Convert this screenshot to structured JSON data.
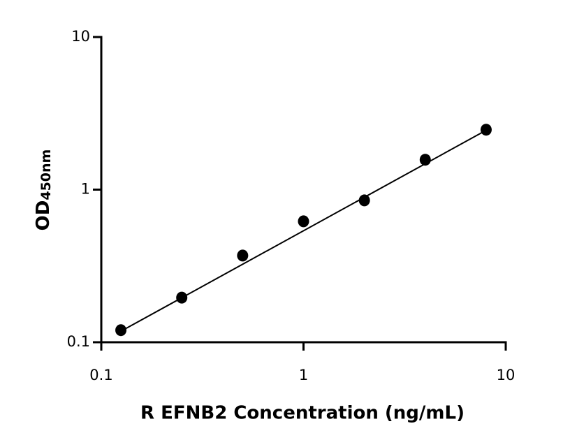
{
  "chart_data": {
    "type": "scatter",
    "x_label": "R EFNB2 Concentration (ng/mL)",
    "y_label": "OD",
    "y_label_subscript": "450nm",
    "xscale": "log",
    "yscale": "log",
    "xlim": [
      0.1,
      10
    ],
    "ylim": [
      0.1,
      10
    ],
    "xticks": [
      0.1,
      1,
      10
    ],
    "yticks": [
      0.1,
      1,
      10
    ],
    "series": [
      {
        "color": "#000000",
        "x": [
          0.125,
          0.25,
          0.5,
          1,
          2,
          4,
          8
        ],
        "values": [
          0.12,
          0.196,
          0.37,
          0.62,
          0.85,
          1.57,
          2.47
        ]
      }
    ],
    "fit_line": {
      "color": "#000000",
      "x": [
        0.125,
        8
      ],
      "values": [
        0.118,
        2.45
      ]
    }
  }
}
